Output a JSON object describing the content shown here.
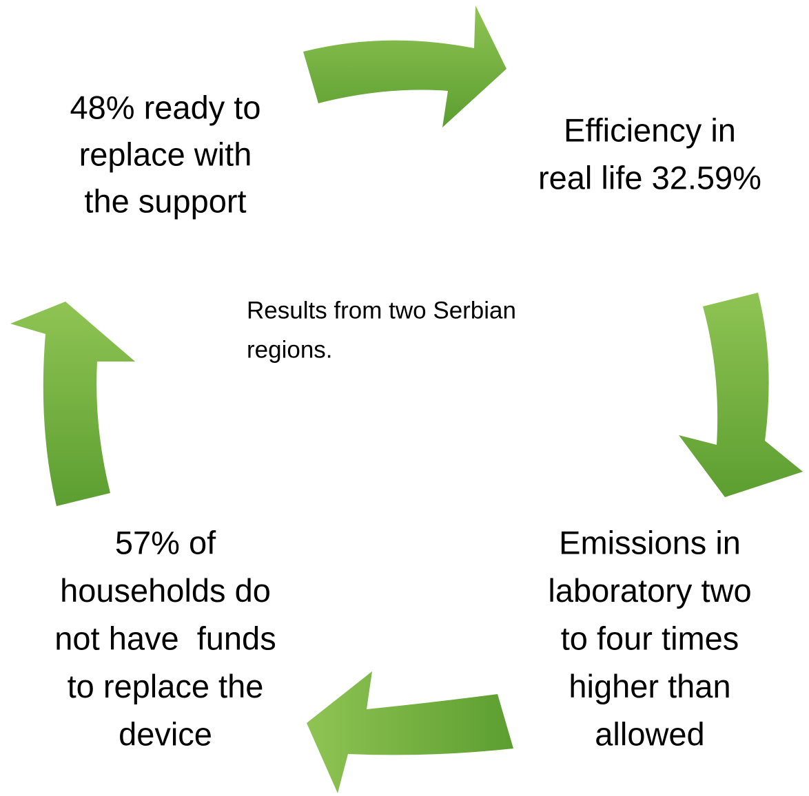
{
  "nodes": [
    {
      "lines": [
        "48% ready to",
        "replace with",
        "the support"
      ]
    },
    {
      "lines": [
        "Efficiency in",
        "real life 32.59%"
      ]
    },
    {
      "lines": [
        "Emissions in",
        "laboratory two",
        "to four times",
        "higher than",
        "allowed"
      ]
    },
    {
      "lines": [
        "57% of",
        "households do",
        "not have  funds",
        "to replace the",
        "device"
      ]
    }
  ],
  "note": {
    "lines": [
      "Results from two Serbian",
      "regions."
    ]
  }
}
